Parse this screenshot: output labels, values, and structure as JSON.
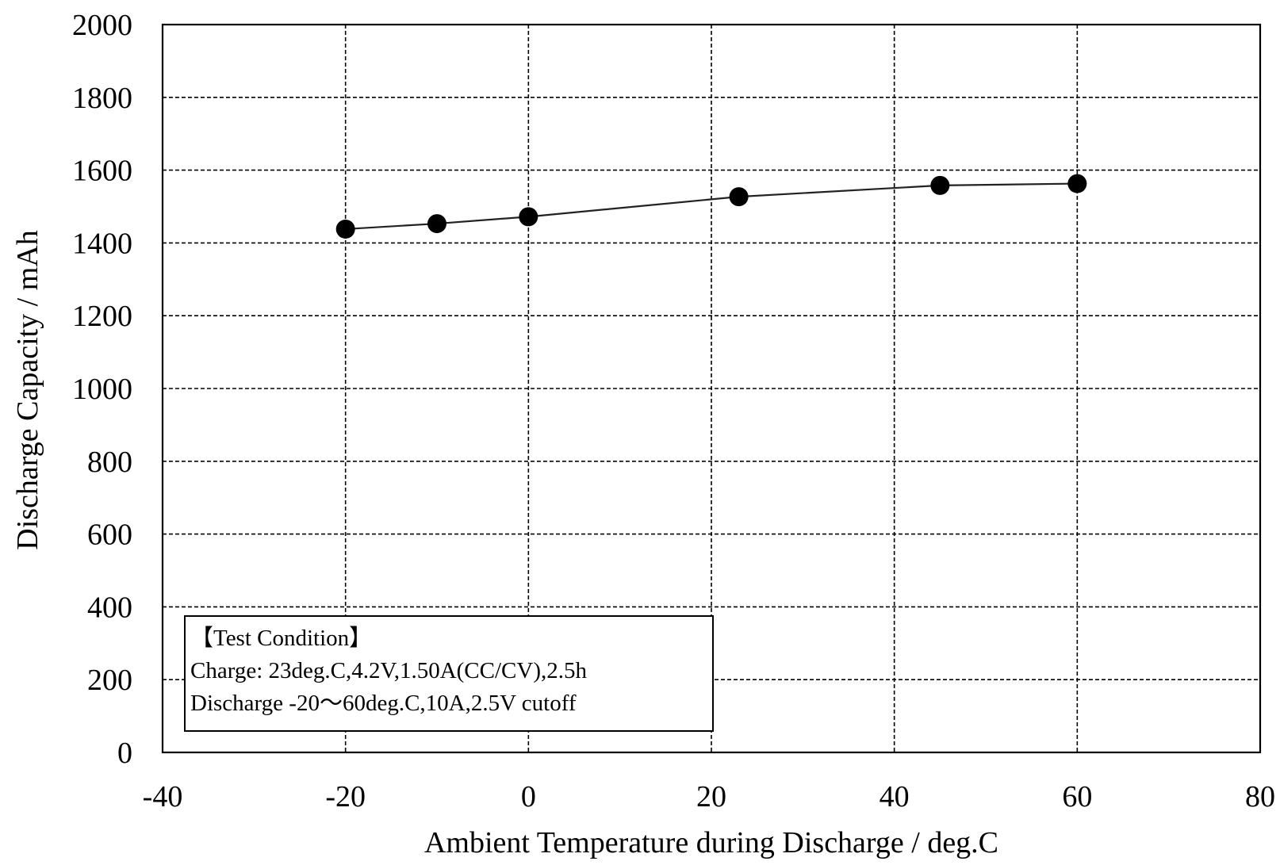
{
  "chart_data": {
    "type": "line",
    "title": "",
    "xlabel": "Ambient  Temperature  during  Discharge / deg.C",
    "ylabel": "Discharge Capacity / mAh",
    "xlim": [
      -40,
      80
    ],
    "ylim": [
      0,
      2000
    ],
    "x_ticks": [
      -40,
      -20,
      0,
      20,
      40,
      60,
      80
    ],
    "y_ticks": [
      0,
      200,
      400,
      600,
      800,
      1000,
      1200,
      1400,
      1600,
      1800,
      2000
    ],
    "grid": true,
    "legend": "none",
    "series": [
      {
        "x": [
          -20,
          -10,
          0,
          23,
          45,
          60
        ],
        "y": [
          1438,
          1453,
          1472,
          1527,
          1558,
          1563
        ],
        "color": "#000000"
      }
    ],
    "annotation": {
      "lines": [
        "【Test  Condition】",
        "Charge: 23deg.C,4.2V,1.50A(CC/CV),2.5h",
        "Discharge -20～60deg.C,10A,2.5V cutoff"
      ],
      "placement": "bottom-left"
    }
  }
}
